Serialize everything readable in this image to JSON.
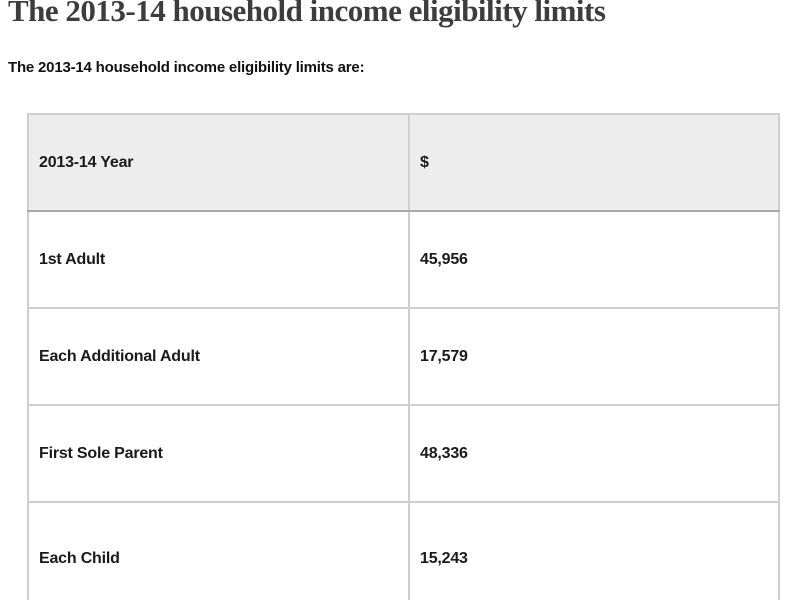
{
  "page": {
    "title": "The 2013-14 household income eligibility limits",
    "intro": "The 2013-14 household income eligibility limits are:"
  },
  "table": {
    "columns": {
      "label": "2013-14 Year",
      "value": "$"
    },
    "rows": [
      {
        "label": "1st Adult",
        "value": "45,956"
      },
      {
        "label": "Each Additional Adult",
        "value": "17,579"
      },
      {
        "label": "First Sole Parent",
        "value": "48,336"
      },
      {
        "label": "Each Child",
        "value": "15,243"
      }
    ]
  },
  "colors": {
    "title_text": "#3d3d3d",
    "body_text": "#1a1a1a",
    "header_fill": "#ededed",
    "outer_border": "#888888",
    "inner_border": "#cfcfcf",
    "page_background": "#ffffff"
  }
}
